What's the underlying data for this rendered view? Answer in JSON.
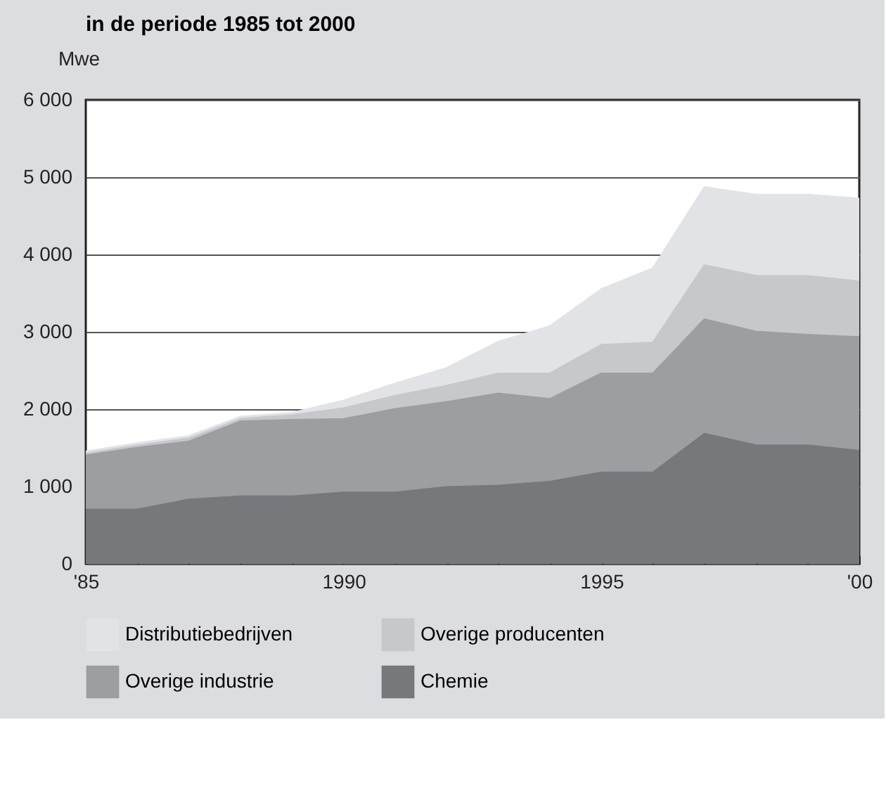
{
  "chart_data": {
    "type": "area",
    "title": "in de periode 1985 tot 2000",
    "ylabel": "Mwe",
    "stacked": true,
    "x": [
      1985,
      1986,
      1987,
      1988,
      1989,
      1990,
      1991,
      1992,
      1993,
      1994,
      1995,
      1996,
      1997,
      1998,
      1999,
      2000
    ],
    "series": [
      {
        "name": "Chemie",
        "color": "#76787c",
        "values": [
          700,
          700,
          830,
          870,
          870,
          920,
          920,
          990,
          1010,
          1060,
          1180,
          1180,
          1680,
          1530,
          1530,
          1460
        ]
      },
      {
        "name": "Overige industrie",
        "color": "#9c9ea2",
        "values": [
          700,
          800,
          750,
          970,
          990,
          950,
          1080,
          1100,
          1190,
          1070,
          1280,
          1280,
          1480,
          1470,
          1430,
          1470
        ]
      },
      {
        "name": "Overige producenten",
        "color": "#c6c8cb",
        "values": [
          30,
          30,
          40,
          40,
          60,
          140,
          170,
          210,
          260,
          330,
          370,
          400,
          700,
          720,
          760,
          720
        ]
      },
      {
        "name": "Distributiebedrijven",
        "color": "#e2e3e6",
        "values": [
          20,
          30,
          30,
          20,
          30,
          100,
          160,
          230,
          410,
          610,
          720,
          960,
          1010,
          1050,
          1050,
          1070
        ]
      }
    ],
    "xlim": [
      1985,
      2000
    ],
    "xticks": [
      {
        "value": 1985,
        "label": "'85"
      },
      {
        "value": 1986,
        "label": null
      },
      {
        "value": 1987,
        "label": null
      },
      {
        "value": 1988,
        "label": null
      },
      {
        "value": 1989,
        "label": null
      },
      1990,
      {
        "value": 1991,
        "label": null
      },
      {
        "value": 1992,
        "label": null
      },
      {
        "value": 1993,
        "label": null
      },
      {
        "value": 1994,
        "label": null
      },
      1995,
      {
        "value": 1996,
        "label": null
      },
      {
        "value": 1997,
        "label": null
      },
      {
        "value": 1998,
        "label": null
      },
      {
        "value": 1999,
        "label": null
      },
      {
        "value": 2000,
        "label": "'00"
      }
    ],
    "ylim": [
      0,
      6000
    ],
    "yticks": [
      0,
      {
        "value": 1000,
        "label": "1 000"
      },
      {
        "value": 2000,
        "label": "2 000"
      },
      {
        "value": 3000,
        "label": "3 000"
      },
      {
        "value": 4000,
        "label": "4 000"
      },
      {
        "value": 5000,
        "label": "5 000"
      },
      {
        "value": 6000,
        "label": "6 000"
      }
    ],
    "grid": "y",
    "legend": "bottom"
  }
}
